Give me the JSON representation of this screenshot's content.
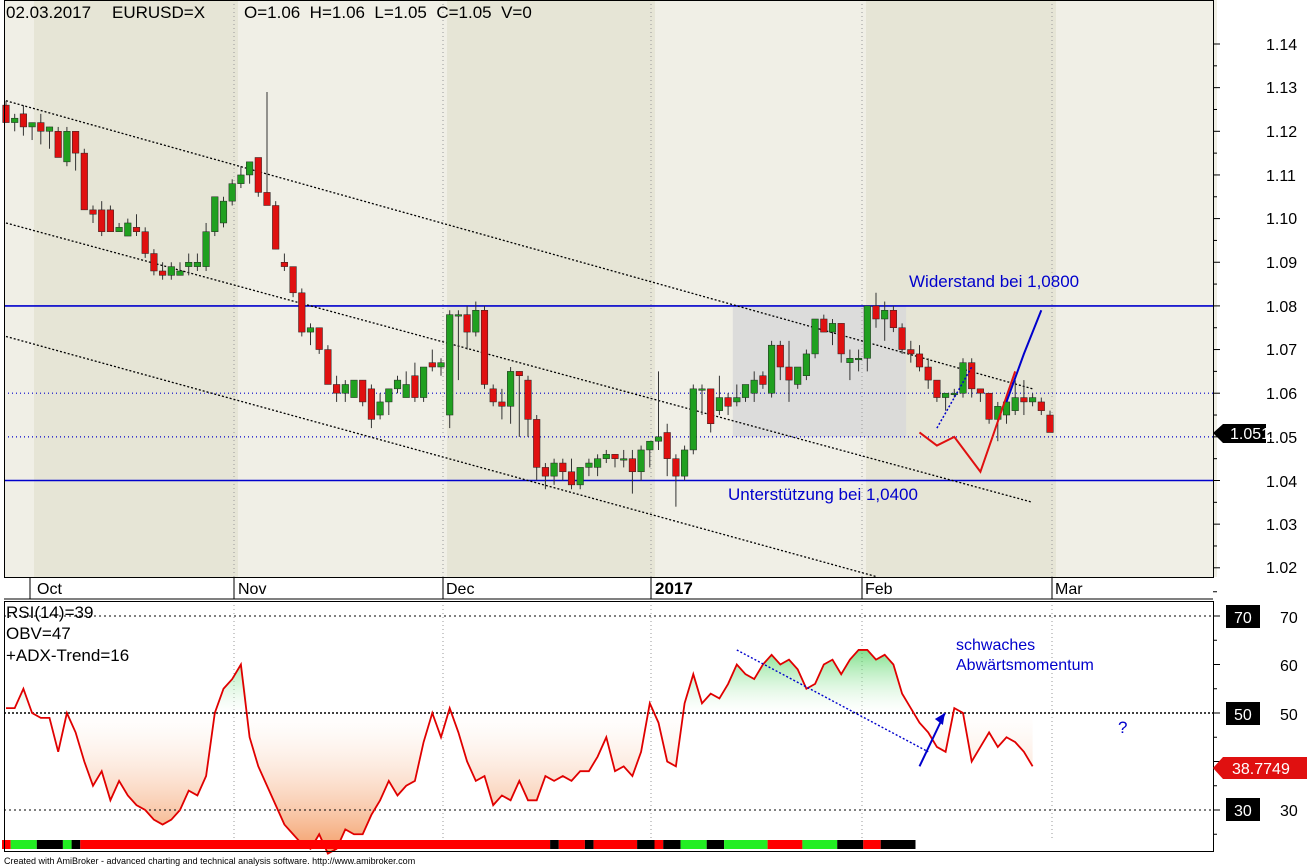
{
  "header": {
    "date": "02.03.2017",
    "symbol": "EURUSD=X",
    "ohlcv": "O=1.06  H=1.06  L=1.05  C=1.05  V=0"
  },
  "footer": "Created with AmiBroker - advanced charting and technical analysis software. http://www.amibroker.com",
  "colors": {
    "up": "#20a020",
    "down": "#e01010",
    "line_blue": "#0000cc",
    "projection_red": "#e01010",
    "rsi_line": "#e00000",
    "band_light": "#f0efe6",
    "band_dark": "#e6e5d6"
  },
  "chart_data": [
    {
      "type": "candlestick",
      "title": "",
      "ylim": [
        1.015,
        1.15
      ],
      "yticks": [
        "1.02",
        "1.03",
        "1.04",
        "1.05",
        "1.06",
        "1.07",
        "1.08",
        "1.09",
        "1.10",
        "1.11",
        "1.12",
        "1.13",
        "1.14"
      ],
      "month_labels": [
        "Oct",
        "Nov",
        "Dec",
        "2017",
        "Feb",
        "Mar"
      ],
      "last_price_label": "1.0511",
      "horizontal_levels": [
        {
          "value": 1.08,
          "style": "solid",
          "label": "Widerstand bei 1,0800"
        },
        {
          "value": 1.04,
          "style": "solid",
          "label": "Unterstützung bei 1,0400"
        },
        {
          "value": 1.06,
          "style": "dotted",
          "label": ""
        },
        {
          "value": 1.05,
          "style": "dotted",
          "label": ""
        }
      ],
      "trend_channel_lines": [
        {
          "from": [
            0,
            1.127
          ],
          "to": [
            118,
            1.061
          ]
        },
        {
          "from": [
            0,
            1.099
          ],
          "to": [
            118,
            1.035
          ]
        },
        {
          "from": [
            0,
            1.073
          ],
          "to": [
            100,
            1.018
          ]
        }
      ],
      "highlight_box": {
        "from_index": 84,
        "to_index": 103,
        "low": 1.05,
        "high": 1.08
      },
      "projection_red": [
        [
          105,
          1.051
        ],
        [
          107,
          1.048
        ],
        [
          109,
          1.05
        ],
        [
          112,
          1.042
        ],
        [
          116,
          1.065
        ]
      ],
      "projection_blue_solid": [
        [
          115,
          1.058
        ],
        [
          117,
          1.069
        ],
        [
          119,
          1.079
        ]
      ],
      "projection_blue_dotted": [
        [
          107,
          1.052
        ],
        [
          111,
          1.066
        ]
      ],
      "candles": [
        [
          1.126,
          1.127,
          1.122,
          1.122
        ],
        [
          1.122,
          1.124,
          1.12,
          1.123
        ],
        [
          1.124,
          1.126,
          1.119,
          1.121
        ],
        [
          1.121,
          1.122,
          1.118,
          1.122
        ],
        [
          1.122,
          1.124,
          1.117,
          1.12
        ],
        [
          1.12,
          1.121,
          1.116,
          1.121
        ],
        [
          1.12,
          1.121,
          1.114,
          1.114
        ],
        [
          1.113,
          1.121,
          1.112,
          1.12
        ],
        [
          1.12,
          1.12,
          1.111,
          1.115
        ],
        [
          1.115,
          1.116,
          1.102,
          1.102
        ],
        [
          1.102,
          1.103,
          1.099,
          1.101
        ],
        [
          1.102,
          1.104,
          1.096,
          1.097
        ],
        [
          1.102,
          1.103,
          1.097,
          1.097
        ],
        [
          1.097,
          1.099,
          1.097,
          1.098
        ],
        [
          1.096,
          1.1,
          1.096,
          1.099
        ],
        [
          1.098,
          1.101,
          1.096,
          1.097
        ],
        [
          1.097,
          1.098,
          1.091,
          1.092
        ],
        [
          1.092,
          1.093,
          1.087,
          1.088
        ],
        [
          1.088,
          1.09,
          1.086,
          1.087
        ],
        [
          1.087,
          1.09,
          1.086,
          1.089
        ],
        [
          1.087,
          1.09,
          1.087,
          1.088
        ],
        [
          1.089,
          1.092,
          1.087,
          1.09
        ],
        [
          1.089,
          1.092,
          1.088,
          1.09
        ],
        [
          1.089,
          1.099,
          1.088,
          1.097
        ],
        [
          1.097,
          1.104,
          1.096,
          1.105
        ],
        [
          1.099,
          1.105,
          1.098,
          1.104
        ],
        [
          1.104,
          1.109,
          1.103,
          1.108
        ],
        [
          1.108,
          1.112,
          1.107,
          1.11
        ],
        [
          1.11,
          1.112,
          1.108,
          1.113
        ],
        [
          1.114,
          1.114,
          1.105,
          1.106
        ],
        [
          1.106,
          1.129,
          1.104,
          1.103
        ],
        [
          1.103,
          1.104,
          1.093,
          1.093
        ],
        [
          1.09,
          1.092,
          1.088,
          1.089
        ],
        [
          1.089,
          1.089,
          1.082,
          1.083
        ],
        [
          1.083,
          1.084,
          1.073,
          1.074
        ],
        [
          1.074,
          1.076,
          1.071,
          1.075
        ],
        [
          1.075,
          1.075,
          1.069,
          1.07
        ],
        [
          1.07,
          1.071,
          1.062,
          1.062
        ],
        [
          1.062,
          1.064,
          1.058,
          1.06
        ],
        [
          1.06,
          1.063,
          1.058,
          1.062
        ],
        [
          1.059,
          1.063,
          1.059,
          1.063
        ],
        [
          1.063,
          1.063,
          1.057,
          1.058
        ],
        [
          1.061,
          1.062,
          1.052,
          1.054
        ],
        [
          1.055,
          1.06,
          1.054,
          1.058
        ],
        [
          1.058,
          1.061,
          1.055,
          1.061
        ],
        [
          1.061,
          1.064,
          1.06,
          1.063
        ],
        [
          1.059,
          1.065,
          1.059,
          1.062
        ],
        [
          1.064,
          1.067,
          1.058,
          1.059
        ],
        [
          1.059,
          1.066,
          1.058,
          1.066
        ],
        [
          1.067,
          1.07,
          1.065,
          1.066
        ],
        [
          1.066,
          1.068,
          1.064,
          1.067
        ],
        [
          1.055,
          1.079,
          1.052,
          1.078
        ],
        [
          1.078,
          1.079,
          1.063,
          1.078
        ],
        [
          1.078,
          1.08,
          1.07,
          1.074
        ],
        [
          1.074,
          1.081,
          1.073,
          1.079
        ],
        [
          1.079,
          1.08,
          1.061,
          1.062
        ],
        [
          1.061,
          1.062,
          1.057,
          1.058
        ],
        [
          1.058,
          1.061,
          1.054,
          1.057
        ],
        [
          1.057,
          1.066,
          1.053,
          1.065
        ],
        [
          1.065,
          1.065,
          1.05,
          1.064
        ],
        [
          1.063,
          1.064,
          1.05,
          1.054
        ],
        [
          1.054,
          1.055,
          1.04,
          1.043
        ],
        [
          1.043,
          1.044,
          1.038,
          1.041
        ],
        [
          1.041,
          1.045,
          1.039,
          1.044
        ],
        [
          1.044,
          1.045,
          1.04,
          1.042
        ],
        [
          1.042,
          1.045,
          1.038,
          1.039
        ],
        [
          1.039,
          1.043,
          1.038,
          1.043
        ],
        [
          1.043,
          1.045,
          1.041,
          1.044
        ],
        [
          1.043,
          1.046,
          1.041,
          1.045
        ],
        [
          1.045,
          1.047,
          1.044,
          1.046
        ],
        [
          1.046,
          1.046,
          1.043,
          1.045
        ],
        [
          1.045,
          1.047,
          1.043,
          1.045
        ],
        [
          1.045,
          1.047,
          1.037,
          1.042
        ],
        [
          1.042,
          1.048,
          1.04,
          1.047
        ],
        [
          1.047,
          1.049,
          1.043,
          1.049
        ],
        [
          1.049,
          1.065,
          1.047,
          1.05
        ],
        [
          1.051,
          1.053,
          1.041,
          1.045
        ],
        [
          1.045,
          1.046,
          1.034,
          1.041
        ],
        [
          1.041,
          1.048,
          1.04,
          1.047
        ],
        [
          1.047,
          1.062,
          1.046,
          1.061
        ],
        [
          1.061,
          1.062,
          1.055,
          1.061
        ],
        [
          1.061,
          1.061,
          1.051,
          1.053
        ],
        [
          1.056,
          1.064,
          1.055,
          1.059
        ],
        [
          1.059,
          1.06,
          1.055,
          1.057
        ],
        [
          1.058,
          1.062,
          1.057,
          1.059
        ],
        [
          1.059,
          1.062,
          1.058,
          1.062
        ],
        [
          1.06,
          1.065,
          1.058,
          1.063
        ],
        [
          1.064,
          1.065,
          1.061,
          1.062
        ],
        [
          1.06,
          1.072,
          1.059,
          1.071
        ],
        [
          1.071,
          1.072,
          1.063,
          1.066
        ],
        [
          1.066,
          1.072,
          1.058,
          1.063
        ],
        [
          1.062,
          1.066,
          1.061,
          1.066
        ],
        [
          1.064,
          1.07,
          1.063,
          1.069
        ],
        [
          1.069,
          1.077,
          1.068,
          1.077
        ],
        [
          1.077,
          1.078,
          1.074,
          1.074
        ],
        [
          1.074,
          1.077,
          1.071,
          1.076
        ],
        [
          1.076,
          1.076,
          1.067,
          1.069
        ],
        [
          1.067,
          1.07,
          1.063,
          1.068
        ],
        [
          1.068,
          1.07,
          1.065,
          1.068
        ],
        [
          1.068,
          1.08,
          1.065,
          1.08
        ],
        [
          1.08,
          1.083,
          1.075,
          1.077
        ],
        [
          1.077,
          1.081,
          1.072,
          1.079
        ],
        [
          1.079,
          1.08,
          1.074,
          1.075
        ],
        [
          1.075,
          1.076,
          1.069,
          1.07
        ],
        [
          1.07,
          1.072,
          1.067,
          1.069
        ],
        [
          1.069,
          1.071,
          1.065,
          1.066
        ],
        [
          1.066,
          1.068,
          1.061,
          1.063
        ],
        [
          1.063,
          1.063,
          1.058,
          1.059
        ],
        [
          1.059,
          1.06,
          1.056,
          1.06
        ],
        [
          1.06,
          1.061,
          1.059,
          1.06
        ],
        [
          1.06,
          1.068,
          1.059,
          1.067
        ],
        [
          1.067,
          1.068,
          1.059,
          1.061
        ],
        [
          1.061,
          1.061,
          1.058,
          1.06
        ],
        [
          1.06,
          1.06,
          1.053,
          1.054
        ],
        [
          1.054,
          1.058,
          1.049,
          1.057
        ],
        [
          1.055,
          1.059,
          1.053,
          1.058
        ],
        [
          1.056,
          1.063,
          1.055,
          1.059
        ],
        [
          1.059,
          1.063,
          1.055,
          1.058
        ],
        [
          1.058,
          1.06,
          1.057,
          1.059
        ],
        [
          1.058,
          1.059,
          1.055,
          1.056
        ],
        [
          1.055,
          1.056,
          1.051,
          1.051
        ]
      ]
    },
    {
      "type": "line",
      "title": "",
      "ylim": [
        19,
        81
      ],
      "yticks": [
        "30",
        "40",
        "50",
        "60",
        "70"
      ],
      "boxed_ticks": [
        "70",
        "50",
        "30"
      ],
      "legend": [
        "RSI(14)=39",
        "OBV=47",
        "+ADX-Trend=16"
      ],
      "last_value_label": "38.7749",
      "reference_lines": [
        30,
        50,
        70
      ],
      "annotation": [
        "schwaches",
        "Abwärtsmomentum"
      ],
      "question_mark": "?",
      "trend_line": {
        "from": [
          84,
          63
        ],
        "to": [
          106,
          42
        ]
      },
      "blue_arrow": {
        "from": [
          105,
          39
        ],
        "to": [
          107,
          50
        ]
      },
      "series": [
        {
          "name": "RSI(14)",
          "values": [
            51,
            51,
            55,
            50,
            49,
            49,
            42,
            50,
            46,
            40,
            35,
            38,
            32,
            36,
            33,
            31,
            30,
            28,
            27,
            28,
            30,
            34,
            33,
            37,
            50,
            55,
            57,
            60,
            45,
            39,
            35,
            31,
            27,
            25,
            23,
            22,
            25,
            21,
            22,
            26,
            25,
            25,
            29,
            32,
            36,
            33,
            35,
            36,
            44,
            50,
            45,
            51,
            46,
            40,
            36,
            37,
            31,
            33,
            32,
            36,
            32,
            32,
            37,
            36,
            37,
            36,
            38,
            38,
            41,
            45,
            38,
            39,
            37,
            42,
            52,
            48,
            40,
            39,
            52,
            58,
            52,
            54,
            53,
            56,
            60,
            58,
            57,
            60,
            62,
            60,
            61,
            59,
            55,
            56,
            60,
            61,
            58,
            61,
            63,
            63,
            61,
            62,
            60,
            54,
            51,
            48,
            46,
            43,
            42,
            51,
            50,
            40,
            43,
            46,
            43,
            45,
            44,
            42,
            39
          ]
        }
      ]
    }
  ],
  "activity_bar": [
    [
      "#ff0000",
      0,
      1
    ],
    [
      "#22ee22",
      1,
      4
    ],
    [
      "#000000",
      4,
      7
    ],
    [
      "#22ee22",
      7,
      8
    ],
    [
      "#000000",
      8,
      9
    ],
    [
      "#ff0000",
      9,
      63
    ],
    [
      "#000000",
      63,
      64
    ],
    [
      "#ff0000",
      64,
      67
    ],
    [
      "#000000",
      67,
      68
    ],
    [
      "#ff0000",
      68,
      73
    ],
    [
      "#000000",
      73,
      75
    ],
    [
      "#ff0000",
      75,
      76
    ],
    [
      "#000000",
      76,
      78
    ],
    [
      "#22ee22",
      78,
      81
    ],
    [
      "#000000",
      81,
      83
    ],
    [
      "#22ee22",
      83,
      88
    ],
    [
      "#ff0000",
      88,
      92
    ],
    [
      "#22ee22",
      92,
      96
    ],
    [
      "#000000",
      96,
      99
    ],
    [
      "#ff0000",
      99,
      101
    ],
    [
      "#000000",
      101,
      105
    ]
  ]
}
